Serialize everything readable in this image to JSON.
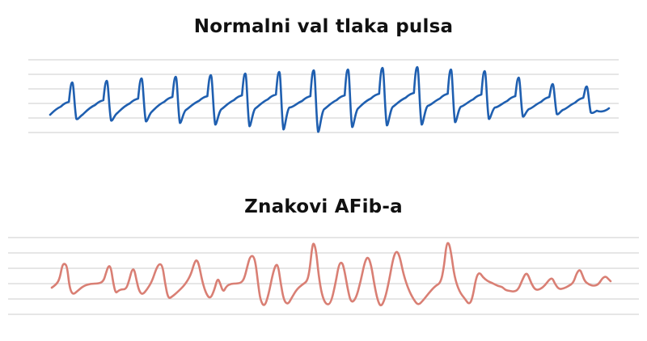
{
  "panels": [
    {
      "id": "normal",
      "title": "Normalni val tlaka pulsa",
      "line_color": "#1f5fb0",
      "grid_color": "#d6d6d6"
    },
    {
      "id": "afib",
      "title": "Znakovi AFib-a",
      "line_color": "#d97f74",
      "grid_color": "#d6d6d6"
    }
  ]
}
